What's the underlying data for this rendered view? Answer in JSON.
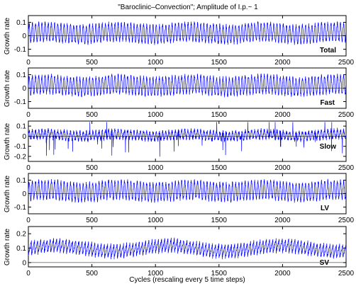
{
  "chart_data": {
    "type": "line",
    "title": "\"Baroclinic–Convection\"; Amplitude of I.p.~ 1",
    "xlabel": "Cycles (rescaling every 5 time steps)",
    "xlim": [
      0,
      2500
    ],
    "xticks": [
      0,
      500,
      1000,
      1500,
      2000,
      2500
    ],
    "grid": false,
    "series_color": "#0000ff",
    "panels": [
      {
        "name": "Total",
        "ylabel": "Growth rate",
        "ylim": [
          -0.15,
          0.15
        ],
        "yticks": [
          0.1,
          0,
          -0.1
        ],
        "ytick_labels": [
          "0.1",
          "0",
          "-0.1"
        ],
        "signal": {
          "mean": 0.02,
          "amplitude": 0.065,
          "noise": 0.015,
          "period": 25
        }
      },
      {
        "name": "Fast",
        "ylabel": "Growth rate",
        "ylim": [
          -0.15,
          0.15
        ],
        "yticks": [
          0.1,
          0,
          -0.1
        ],
        "ytick_labels": [
          "0.1",
          "0",
          "-0.1"
        ],
        "signal": {
          "mean": 0.02,
          "amplitude": 0.065,
          "noise": 0.015,
          "period": 25
        }
      },
      {
        "name": "Slow",
        "ylabel": "Growth rate",
        "ylim": [
          -0.25,
          0.15
        ],
        "yticks": [
          0.1,
          0,
          -0.1,
          -0.2
        ],
        "ytick_labels": [
          "0.1",
          "0",
          "-0.1",
          "-0.2"
        ],
        "signal": {
          "mean": 0.01,
          "amplitude": 0.04,
          "noise": 0.02,
          "period": 25,
          "spikes": true
        }
      },
      {
        "name": "LV",
        "ylabel": "Growth rate",
        "ylim": [
          -0.15,
          0.15
        ],
        "yticks": [
          0.1,
          0,
          -0.1
        ],
        "ytick_labels": [
          "0.1",
          "0",
          "-0.1"
        ],
        "signal": {
          "mean": 0.02,
          "amplitude": 0.065,
          "noise": 0.015,
          "period": 25
        }
      },
      {
        "name": "SV",
        "ylabel": "Growth rate",
        "ylim": [
          -0.03,
          0.25
        ],
        "yticks": [
          0.2,
          0.1,
          0
        ],
        "ytick_labels": [
          "0.2",
          "0.1",
          "0"
        ],
        "signal": {
          "mean": 0.1,
          "amplitude": 0.06,
          "noise": 0.01,
          "period": 25,
          "sawtooth": true
        }
      }
    ]
  }
}
